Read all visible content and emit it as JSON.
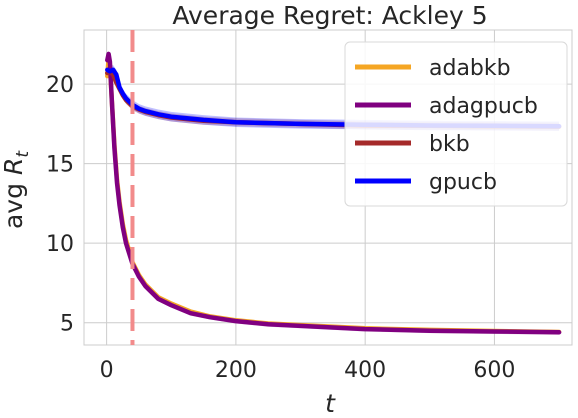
{
  "chart_data": {
    "type": "line",
    "title": "Average Regret: Ackley 5",
    "xlabel": "t",
    "ylabel_prefix": "avg",
    "ylabel_var": "R",
    "ylabel_sub": "t",
    "xlim": [
      -35,
      720
    ],
    "ylim": [
      3.6,
      23.4
    ],
    "xticks": [
      0,
      200,
      400,
      600
    ],
    "yticks": [
      5,
      10,
      15,
      20
    ],
    "grid": true,
    "legend_position": "top-right",
    "vline": {
      "x": 40,
      "color": "#f28b8b"
    },
    "series": [
      {
        "name": "adabkb",
        "color": "#f5a623",
        "x": [
          1,
          3,
          5,
          8,
          12,
          16,
          20,
          25,
          30,
          40,
          50,
          60,
          80,
          100,
          130,
          160,
          200,
          250,
          300,
          400,
          500,
          600,
          700
        ],
        "y": [
          20.5,
          21.6,
          21.2,
          19.0,
          16.2,
          14.0,
          12.6,
          11.2,
          10.2,
          8.8,
          8.0,
          7.4,
          6.6,
          6.2,
          5.7,
          5.4,
          5.15,
          4.95,
          4.85,
          4.65,
          4.55,
          4.48,
          4.42
        ],
        "band": 0.12
      },
      {
        "name": "adagpucb",
        "color": "#800080",
        "x": [
          1,
          3,
          5,
          8,
          12,
          16,
          20,
          25,
          30,
          40,
          50,
          60,
          80,
          100,
          130,
          160,
          200,
          250,
          300,
          400,
          500,
          600,
          700
        ],
        "y": [
          21.5,
          21.9,
          21.4,
          19.0,
          16.0,
          13.8,
          12.4,
          11.0,
          10.0,
          8.7,
          7.9,
          7.3,
          6.5,
          6.1,
          5.6,
          5.35,
          5.1,
          4.9,
          4.8,
          4.6,
          4.5,
          4.45,
          4.4
        ],
        "band": 0.15
      },
      {
        "name": "bkb",
        "color": "#a52a2a",
        "x": [
          1,
          5,
          10,
          15,
          20,
          25,
          30,
          40,
          50,
          60,
          80,
          100,
          150,
          200,
          300,
          400,
          500,
          600,
          700
        ],
        "y": [
          20.7,
          20.8,
          20.6,
          20.1,
          19.7,
          19.3,
          19.0,
          18.6,
          18.4,
          18.25,
          18.05,
          17.9,
          17.7,
          17.6,
          17.5,
          17.4,
          17.38,
          17.35,
          17.33
        ],
        "band": 0.25
      },
      {
        "name": "gpucb",
        "color": "#0000ff",
        "x": [
          1,
          5,
          10,
          15,
          20,
          25,
          30,
          40,
          50,
          60,
          80,
          100,
          150,
          200,
          300,
          400,
          500,
          600,
          700
        ],
        "y": [
          20.9,
          20.8,
          20.9,
          20.6,
          19.8,
          19.4,
          19.1,
          18.7,
          18.45,
          18.3,
          18.1,
          17.95,
          17.75,
          17.6,
          17.5,
          17.45,
          17.4,
          17.38,
          17.35
        ],
        "band": 0.3
      }
    ]
  }
}
